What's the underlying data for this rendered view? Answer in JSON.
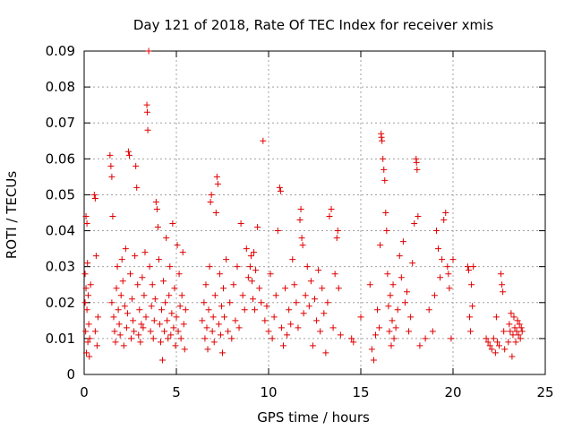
{
  "chart_data": {
    "type": "scatter",
    "title": "Day 121 of 2018, Rate Of TEC Index for receiver xmis",
    "xlabel": "GPS time / hours",
    "ylabel": "ROTI / TECUs",
    "xlim": [
      0,
      25
    ],
    "ylim": [
      0,
      0.09
    ],
    "xticks": [
      0,
      5,
      10,
      15,
      20,
      25
    ],
    "yticks": [
      0,
      0.01,
      0.02,
      0.03,
      0.04,
      0.05,
      0.06,
      0.07,
      0.08,
      0.09
    ],
    "xtick_labels": [
      "0",
      "5",
      "10",
      "15",
      "20",
      "25"
    ],
    "ytick_labels": [
      "0",
      "0.01",
      "0.02",
      "0.03",
      "0.04",
      "0.05",
      "0.06",
      "0.07",
      "0.08",
      "0.09"
    ],
    "grid": true,
    "marker": "+",
    "marker_color": "#e00000",
    "series": [
      {
        "name": "ROTI",
        "points": [
          [
            0.05,
            0.028
          ],
          [
            0.08,
            0.012
          ],
          [
            0.1,
            0.024
          ],
          [
            0.12,
            0.006
          ],
          [
            0.15,
            0.018
          ],
          [
            0.18,
            0.031
          ],
          [
            0.2,
            0.009
          ],
          [
            0.22,
            0.022
          ],
          [
            0.25,
            0.014
          ],
          [
            0.28,
            0.005
          ],
          [
            0.1,
            0.044
          ],
          [
            0.15,
            0.042
          ],
          [
            0.05,
            0.02
          ],
          [
            0.3,
            0.01
          ],
          [
            0.35,
            0.025
          ],
          [
            0.55,
            0.05
          ],
          [
            0.6,
            0.049
          ],
          [
            0.65,
            0.033
          ],
          [
            0.6,
            0.012
          ],
          [
            0.7,
            0.008
          ],
          [
            0.75,
            0.016
          ],
          [
            1.4,
            0.061
          ],
          [
            1.45,
            0.058
          ],
          [
            1.5,
            0.055
          ],
          [
            1.55,
            0.044
          ],
          [
            1.5,
            0.02
          ],
          [
            1.6,
            0.016
          ],
          [
            1.65,
            0.012
          ],
          [
            1.7,
            0.009
          ],
          [
            1.75,
            0.024
          ],
          [
            1.8,
            0.03
          ],
          [
            1.85,
            0.018
          ],
          [
            1.9,
            0.014
          ],
          [
            1.95,
            0.011
          ],
          [
            2.0,
            0.022
          ],
          [
            2.05,
            0.032
          ],
          [
            2.1,
            0.026
          ],
          [
            2.15,
            0.008
          ],
          [
            2.2,
            0.019
          ],
          [
            2.25,
            0.035
          ],
          [
            2.3,
            0.013
          ],
          [
            2.35,
            0.017
          ],
          [
            2.4,
            0.062
          ],
          [
            2.45,
            0.061
          ],
          [
            2.5,
            0.028
          ],
          [
            2.55,
            0.01
          ],
          [
            2.6,
            0.021
          ],
          [
            2.65,
            0.015
          ],
          [
            2.7,
            0.012
          ],
          [
            2.75,
            0.033
          ],
          [
            2.8,
            0.058
          ],
          [
            2.85,
            0.052
          ],
          [
            2.9,
            0.025
          ],
          [
            2.95,
            0.011
          ],
          [
            3.0,
            0.018
          ],
          [
            3.05,
            0.009
          ],
          [
            3.1,
            0.014
          ],
          [
            3.15,
            0.027
          ],
          [
            3.2,
            0.013
          ],
          [
            3.25,
            0.022
          ],
          [
            3.3,
            0.034
          ],
          [
            3.35,
            0.016
          ],
          [
            3.4,
            0.075
          ],
          [
            3.42,
            0.073
          ],
          [
            3.45,
            0.068
          ],
          [
            3.5,
            0.09
          ],
          [
            3.55,
            0.03
          ],
          [
            3.6,
            0.012
          ],
          [
            3.65,
            0.019
          ],
          [
            3.7,
            0.025
          ],
          [
            3.75,
            0.01
          ],
          [
            3.8,
            0.015
          ],
          [
            3.85,
            0.021
          ],
          [
            3.9,
            0.048
          ],
          [
            3.95,
            0.046
          ],
          [
            4.0,
            0.041
          ],
          [
            4.05,
            0.032
          ],
          [
            4.1,
            0.014
          ],
          [
            4.15,
            0.009
          ],
          [
            4.2,
            0.018
          ],
          [
            4.25,
            0.004
          ],
          [
            4.3,
            0.026
          ],
          [
            4.35,
            0.012
          ],
          [
            4.4,
            0.02
          ],
          [
            4.45,
            0.038
          ],
          [
            4.5,
            0.015
          ],
          [
            4.55,
            0.01
          ],
          [
            4.6,
            0.022
          ],
          [
            4.65,
            0.03
          ],
          [
            4.7,
            0.011
          ],
          [
            4.75,
            0.017
          ],
          [
            4.8,
            0.042
          ],
          [
            4.85,
            0.013
          ],
          [
            4.9,
            0.024
          ],
          [
            4.95,
            0.008
          ],
          [
            5.0,
            0.016
          ],
          [
            5.05,
            0.036
          ],
          [
            5.1,
            0.012
          ],
          [
            5.15,
            0.028
          ],
          [
            5.2,
            0.019
          ],
          [
            5.25,
            0.01
          ],
          [
            5.3,
            0.022
          ],
          [
            5.35,
            0.034
          ],
          [
            5.4,
            0.014
          ],
          [
            5.45,
            0.007
          ],
          [
            5.5,
            0.018
          ],
          [
            6.4,
            0.015
          ],
          [
            6.5,
            0.02
          ],
          [
            6.55,
            0.01
          ],
          [
            6.6,
            0.025
          ],
          [
            6.65,
            0.013
          ],
          [
            6.7,
            0.007
          ],
          [
            6.75,
            0.018
          ],
          [
            6.8,
            0.03
          ],
          [
            6.85,
            0.048
          ],
          [
            6.9,
            0.05
          ],
          [
            6.95,
            0.012
          ],
          [
            7.0,
            0.016
          ],
          [
            7.05,
            0.009
          ],
          [
            7.1,
            0.022
          ],
          [
            7.15,
            0.045
          ],
          [
            7.2,
            0.055
          ],
          [
            7.25,
            0.053
          ],
          [
            7.3,
            0.014
          ],
          [
            7.35,
            0.028
          ],
          [
            7.4,
            0.011
          ],
          [
            7.45,
            0.019
          ],
          [
            7.5,
            0.006
          ],
          [
            7.55,
            0.024
          ],
          [
            7.6,
            0.016
          ],
          [
            7.7,
            0.032
          ],
          [
            7.8,
            0.012
          ],
          [
            7.9,
            0.02
          ],
          [
            8.0,
            0.01
          ],
          [
            8.1,
            0.025
          ],
          [
            8.2,
            0.015
          ],
          [
            8.3,
            0.03
          ],
          [
            8.4,
            0.013
          ],
          [
            8.5,
            0.042
          ],
          [
            8.6,
            0.022
          ],
          [
            8.7,
            0.018
          ],
          [
            8.8,
            0.035
          ],
          [
            8.9,
            0.027
          ],
          [
            9.0,
            0.03
          ],
          [
            9.05,
            0.033
          ],
          [
            9.1,
            0.026
          ],
          [
            9.15,
            0.021
          ],
          [
            9.2,
            0.034
          ],
          [
            9.25,
            0.018
          ],
          [
            9.3,
            0.029
          ],
          [
            9.4,
            0.041
          ],
          [
            9.5,
            0.024
          ],
          [
            9.6,
            0.02
          ],
          [
            9.7,
            0.065
          ],
          [
            9.8,
            0.015
          ],
          [
            9.9,
            0.019
          ],
          [
            10.0,
            0.012
          ],
          [
            10.1,
            0.028
          ],
          [
            10.2,
            0.01
          ],
          [
            10.3,
            0.016
          ],
          [
            10.4,
            0.022
          ],
          [
            10.5,
            0.04
          ],
          [
            10.6,
            0.052
          ],
          [
            10.65,
            0.051
          ],
          [
            10.7,
            0.013
          ],
          [
            10.8,
            0.008
          ],
          [
            10.9,
            0.024
          ],
          [
            11.0,
            0.011
          ],
          [
            11.1,
            0.018
          ],
          [
            11.2,
            0.014
          ],
          [
            11.3,
            0.032
          ],
          [
            11.4,
            0.025
          ],
          [
            11.5,
            0.02
          ],
          [
            11.6,
            0.013
          ],
          [
            11.7,
            0.043
          ],
          [
            11.75,
            0.046
          ],
          [
            11.8,
            0.038
          ],
          [
            11.85,
            0.036
          ],
          [
            11.9,
            0.017
          ],
          [
            12.0,
            0.022
          ],
          [
            12.1,
            0.03
          ],
          [
            12.2,
            0.019
          ],
          [
            12.3,
            0.026
          ],
          [
            12.4,
            0.008
          ],
          [
            12.5,
            0.021
          ],
          [
            12.6,
            0.015
          ],
          [
            12.7,
            0.029
          ],
          [
            12.8,
            0.012
          ],
          [
            12.9,
            0.024
          ],
          [
            13.0,
            0.017
          ],
          [
            13.1,
            0.006
          ],
          [
            13.2,
            0.02
          ],
          [
            13.3,
            0.044
          ],
          [
            13.4,
            0.046
          ],
          [
            13.5,
            0.013
          ],
          [
            13.6,
            0.028
          ],
          [
            13.7,
            0.038
          ],
          [
            13.75,
            0.04
          ],
          [
            13.8,
            0.024
          ],
          [
            13.9,
            0.011
          ],
          [
            14.5,
            0.01
          ],
          [
            14.6,
            0.009
          ],
          [
            15.0,
            0.016
          ],
          [
            15.5,
            0.025
          ],
          [
            15.6,
            0.007
          ],
          [
            15.7,
            0.004
          ],
          [
            15.8,
            0.011
          ],
          [
            15.9,
            0.018
          ],
          [
            16.0,
            0.013
          ],
          [
            16.05,
            0.036
          ],
          [
            16.1,
            0.067
          ],
          [
            16.12,
            0.066
          ],
          [
            16.15,
            0.065
          ],
          [
            16.2,
            0.06
          ],
          [
            16.25,
            0.057
          ],
          [
            16.3,
            0.054
          ],
          [
            16.35,
            0.045
          ],
          [
            16.4,
            0.04
          ],
          [
            16.45,
            0.028
          ],
          [
            16.5,
            0.019
          ],
          [
            16.55,
            0.012
          ],
          [
            16.6,
            0.022
          ],
          [
            16.65,
            0.008
          ],
          [
            16.7,
            0.015
          ],
          [
            16.75,
            0.025
          ],
          [
            16.8,
            0.01
          ],
          [
            16.9,
            0.013
          ],
          [
            17.0,
            0.018
          ],
          [
            17.1,
            0.033
          ],
          [
            17.2,
            0.027
          ],
          [
            17.3,
            0.037
          ],
          [
            17.4,
            0.02
          ],
          [
            17.5,
            0.023
          ],
          [
            17.6,
            0.012
          ],
          [
            17.7,
            0.016
          ],
          [
            17.8,
            0.031
          ],
          [
            17.9,
            0.042
          ],
          [
            18.0,
            0.06
          ],
          [
            18.02,
            0.059
          ],
          [
            18.05,
            0.057
          ],
          [
            18.1,
            0.044
          ],
          [
            18.2,
            0.008
          ],
          [
            18.5,
            0.01
          ],
          [
            18.7,
            0.018
          ],
          [
            18.9,
            0.012
          ],
          [
            19.0,
            0.022
          ],
          [
            19.1,
            0.04
          ],
          [
            19.2,
            0.035
          ],
          [
            19.3,
            0.027
          ],
          [
            19.4,
            0.032
          ],
          [
            19.5,
            0.043
          ],
          [
            19.6,
            0.045
          ],
          [
            19.7,
            0.03
          ],
          [
            19.75,
            0.028
          ],
          [
            19.8,
            0.024
          ],
          [
            19.9,
            0.01
          ],
          [
            20.0,
            0.032
          ],
          [
            20.8,
            0.03
          ],
          [
            20.85,
            0.029
          ],
          [
            20.9,
            0.016
          ],
          [
            20.95,
            0.012
          ],
          [
            21.0,
            0.025
          ],
          [
            21.05,
            0.019
          ],
          [
            21.1,
            0.03
          ],
          [
            21.8,
            0.01
          ],
          [
            21.9,
            0.009
          ],
          [
            22.0,
            0.008
          ],
          [
            22.1,
            0.007
          ],
          [
            22.2,
            0.01
          ],
          [
            22.3,
            0.006
          ],
          [
            22.35,
            0.016
          ],
          [
            22.4,
            0.009
          ],
          [
            22.5,
            0.008
          ],
          [
            22.6,
            0.028
          ],
          [
            22.65,
            0.025
          ],
          [
            22.7,
            0.023
          ],
          [
            22.75,
            0.012
          ],
          [
            22.8,
            0.007
          ],
          [
            23.0,
            0.009
          ],
          [
            23.05,
            0.014
          ],
          [
            23.1,
            0.012
          ],
          [
            23.15,
            0.017
          ],
          [
            23.2,
            0.005
          ],
          [
            23.25,
            0.011
          ],
          [
            23.3,
            0.016
          ],
          [
            23.35,
            0.013
          ],
          [
            23.4,
            0.009
          ],
          [
            23.45,
            0.012
          ],
          [
            23.5,
            0.015
          ],
          [
            23.55,
            0.011
          ],
          [
            23.6,
            0.014
          ],
          [
            23.65,
            0.01
          ],
          [
            23.7,
            0.013
          ],
          [
            23.75,
            0.012
          ]
        ]
      }
    ]
  }
}
